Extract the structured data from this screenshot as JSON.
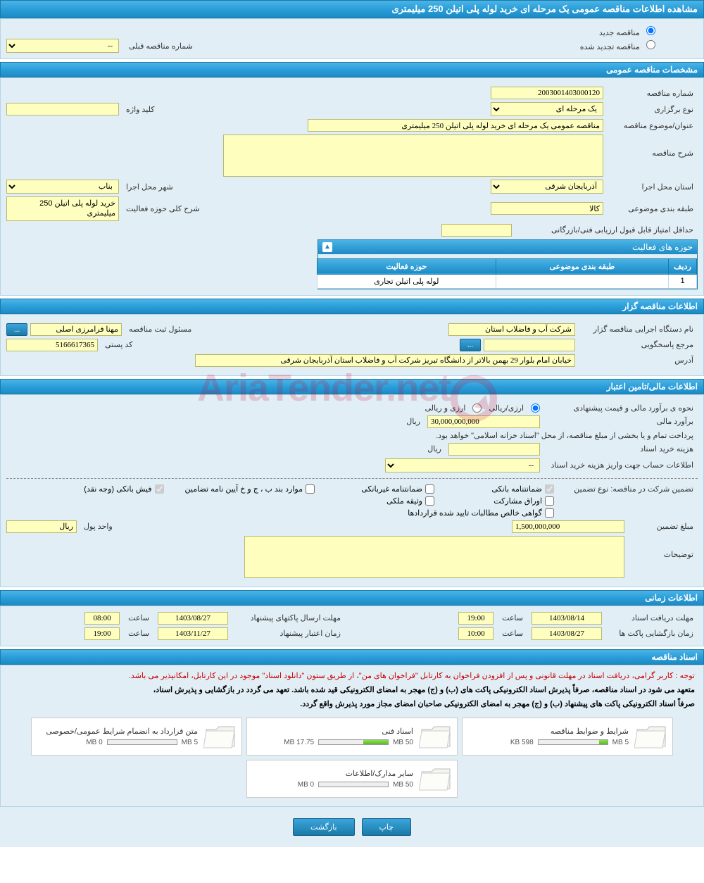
{
  "page_title": "مشاهده اطلاعات مناقصه عمومی یک مرحله ای خرید لوله پلی اتیلن 250 میلیمتری",
  "radio": {
    "new_tender": "مناقصه جدید",
    "renewed_tender": "مناقصه تجدید شده",
    "prev_number_label": "شماره مناقصه قبلی",
    "prev_number_value": "--"
  },
  "sections": {
    "general": "مشخصات مناقصه عمومی",
    "organizer": "اطلاعات مناقصه گزار",
    "financial": "اطلاعات مالی/تامین اعتبار",
    "timing": "اطلاعات زمانی",
    "documents": "اسناد مناقصه"
  },
  "general": {
    "tender_number_label": "شماره مناقصه",
    "tender_number": "2003001403000120",
    "keyword_label": "کلید واژه",
    "keyword": "",
    "holding_type_label": "نوع برگزاری",
    "holding_type": "یک مرحله ای",
    "subject_label": "عنوان/موضوع مناقصه",
    "subject": "مناقصه عمومی یک مرحله ای خرید لوله پلی اتیلن 250 میلیمتری",
    "description_label": "شرح مناقصه",
    "description": "",
    "province_label": "استان محل اجرا",
    "province": "آذربایجان شرقی",
    "city_label": "شهر محل اجرا",
    "city": "بناب",
    "category_label": "طبقه بندی موضوعی",
    "category": "کالا",
    "activity_scope_label": "شرح کلی حوزه فعالیت",
    "activity_scope": "خرید لوله پلی اتیلن 250 میلیمتری",
    "min_score_label": "حداقل امتیاز قابل قبول ارزیابی فنی/بازرگانی",
    "min_score": ""
  },
  "activity_table": {
    "header": "حوزه های فعالیت",
    "col_row": "ردیف",
    "col_category": "طبقه بندی موضوعی",
    "col_field": "حوزه فعالیت",
    "rows": [
      {
        "n": "1",
        "category": "",
        "field": "لوله پلی اتیلن تجاری"
      }
    ]
  },
  "organizer": {
    "agency_label": "نام دستگاه اجرایی مناقصه گزار",
    "agency": "شرکت آب و فاضلاب استان",
    "responsible_label": "مسئول ثبت مناقصه",
    "responsible": "مهنا فرامرزی اصلی",
    "contact_label": "مرجع پاسخگویی",
    "contact": "",
    "postal_label": "کد پستی",
    "postal": "5166617365",
    "address_label": "آدرس",
    "address": "خیابان امام بلوار 29 بهمن بالاتر از دانشگاه تبریز شرکت آب و فاضلاب استان آذربایجان شرقی"
  },
  "financial": {
    "estimate_method_label": "نحوه ی برآورد مالی و قیمت پیشنهادی",
    "currency_rial": "ارزی/ریالی",
    "currency_rial_foreign": "ارزی و ریالی",
    "estimate_label": "برآورد مالی",
    "estimate": "30,000,000,000",
    "rial_unit": "ریال",
    "treasury_notice": "پرداخت تمام و یا بخشی از مبلغ مناقصه، از محل \"اسناد خزانه اسلامی\" خواهد بود.",
    "doc_cost_label": "هزینه خرید اسناد",
    "doc_cost": "",
    "doc_account_label": "اطلاعات حساب جهت واریز هزینه خرید اسناد",
    "doc_account": "--",
    "guarantee_type_label": "تضمین شرکت در مناقصه:    نوع تضمین",
    "guarantee": {
      "bank_guarantee": "ضمانتنامه بانکی",
      "nonbank_guarantee": "ضمانتنامه غیربانکی",
      "regulation_items": "موارد بند ب ، ج و خ آیین نامه تضامین",
      "bank_receipt": "فیش بانکی (وجه نقد)",
      "bonds": "اوراق مشارکت",
      "property_pledge": "وثیقه ملکی",
      "net_claims": "گواهی خالص مطالبات تایید شده قراردادها"
    },
    "guarantee_amount_label": "مبلغ تضمین",
    "guarantee_amount": "1,500,000,000",
    "currency_unit_label": "واحد پول",
    "currency_unit": "ریال",
    "remarks_label": "توضیحات",
    "remarks": ""
  },
  "timing": {
    "doc_receipt_label": "مهلت دریافت اسناد",
    "doc_receipt_date": "1403/08/14",
    "doc_receipt_time": "19:00",
    "proposal_deadline_label": "مهلت ارسال پاکتهای پیشنهاد",
    "proposal_deadline_date": "1403/08/27",
    "proposal_deadline_time": "08:00",
    "opening_label": "زمان بازگشایی پاکت ها",
    "opening_date": "1403/08/27",
    "opening_time": "10:00",
    "validity_label": "زمان اعتبار پیشنهاد",
    "validity_date": "1403/11/27",
    "validity_time": "19:00",
    "time_label": "ساعت"
  },
  "documents": {
    "red_notice": "توجه : کاربر گرامی، دریافت اسناد در مهلت قانونی و پس از افزودن فراخوان به کارتابل \"فراخوان های من\"، از طریق ستون \"دانلود اسناد\" موجود در این کارتابل، امکانپذیر می باشد.",
    "black_notice_1": "متعهد می شود در اسناد مناقصه، صرفاً پذیرش اسناد الکترونیکی پاکت های (ب) و (ج) مهجر به امضای الکترونیکی قید شده باشد. تعهد می گردد در بازگشایی و پذیرش اسناد،",
    "black_notice_2": "صرفاً اسناد الکترونیکی پاکت های پیشنهاد (ب) و (ج) مهجر به امضای الکترونیکی صاحبان امضای مجاز مورد پذیرش واقع گردد.",
    "tiles": [
      {
        "title": "شرایط و ضوابط مناقصه",
        "used": "598 KB",
        "total": "5 MB",
        "pct": 12
      },
      {
        "title": "اسناد فنی",
        "used": "17.75 MB",
        "total": "50 MB",
        "pct": 36
      },
      {
        "title": "متن قرارداد به انضمام شرایط عمومی/خصوصی",
        "used": "0 MB",
        "total": "5 MB",
        "pct": 0
      },
      {
        "title": "سایر مدارک/اطلاعات",
        "used": "0 MB",
        "total": "50 MB",
        "pct": 0
      }
    ]
  },
  "buttons": {
    "print": "چاپ",
    "back": "بازگشت",
    "ellipsis": "..."
  },
  "watermark": "AriaTender.net"
}
